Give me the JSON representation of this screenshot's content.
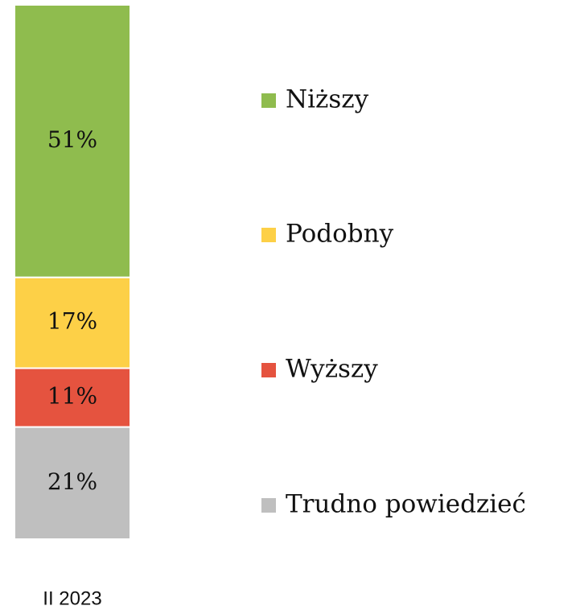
{
  "chart_data": {
    "type": "stacked_bar",
    "categories": [
      "II 2023"
    ],
    "ylim": [
      0,
      100
    ],
    "series": [
      {
        "name": "Niższy",
        "color": "#8fbc4e",
        "values": [
          51
        ],
        "value_labels": [
          "51%"
        ]
      },
      {
        "name": "Podobny",
        "color": "#fdd047",
        "values": [
          17
        ],
        "value_labels": [
          "17%"
        ]
      },
      {
        "name": "Wyższy",
        "color": "#e5533f",
        "values": [
          11
        ],
        "value_labels": [
          "11%"
        ]
      },
      {
        "name": "Trudno powiedzieć",
        "color": "#bfbfbf",
        "values": [
          21
        ],
        "value_labels": [
          "21%"
        ]
      }
    ]
  }
}
